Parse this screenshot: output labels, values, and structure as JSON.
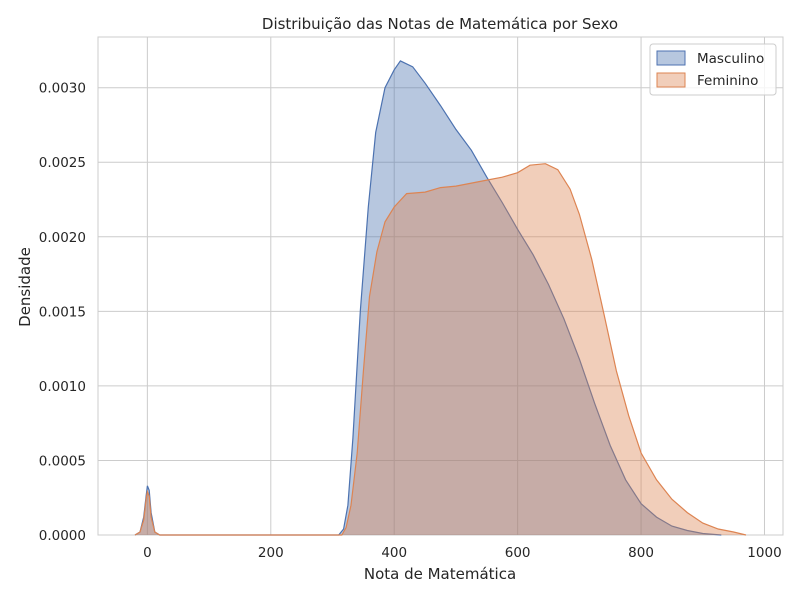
{
  "chart_data": {
    "type": "area",
    "title": "Distribuição das Notas de Matemática por Sexo",
    "xlabel": "Nota de Matemática",
    "ylabel": "Densidade",
    "xlim": [
      -80,
      1030
    ],
    "ylim": [
      0,
      0.00334
    ],
    "x_ticks": [
      0,
      200,
      400,
      600,
      800,
      1000
    ],
    "y_ticks": [
      0.0,
      0.0005,
      0.001,
      0.0015,
      0.002,
      0.0025,
      0.003
    ],
    "y_tick_labels": [
      "0.0000",
      "0.0005",
      "0.0010",
      "0.0015",
      "0.0020",
      "0.0025",
      "0.0030"
    ],
    "grid": true,
    "legend_position": "top-right",
    "series": [
      {
        "name": "Masculino",
        "color": "#4c72b0",
        "fill_alpha": 0.4,
        "points": [
          [
            -20,
            0
          ],
          [
            -12,
            2e-05
          ],
          [
            -6,
            0.00012
          ],
          [
            -2,
            0.00026
          ],
          [
            0,
            0.00033
          ],
          [
            3,
            0.0003
          ],
          [
            6,
            0.00015
          ],
          [
            12,
            2e-05
          ],
          [
            20,
            0
          ],
          [
            310,
            0
          ],
          [
            318,
            4e-05
          ],
          [
            325,
            0.0002
          ],
          [
            333,
            0.00065
          ],
          [
            345,
            0.0015
          ],
          [
            358,
            0.0022
          ],
          [
            370,
            0.0027
          ],
          [
            385,
            0.003
          ],
          [
            400,
            0.00312
          ],
          [
            410,
            0.00318
          ],
          [
            430,
            0.00314
          ],
          [
            450,
            0.00303
          ],
          [
            475,
            0.00288
          ],
          [
            500,
            0.00272
          ],
          [
            525,
            0.00258
          ],
          [
            550,
            0.0024
          ],
          [
            575,
            0.00223
          ],
          [
            600,
            0.00205
          ],
          [
            625,
            0.00188
          ],
          [
            650,
            0.00168
          ],
          [
            675,
            0.00145
          ],
          [
            700,
            0.00118
          ],
          [
            725,
            0.00088
          ],
          [
            750,
            0.0006
          ],
          [
            775,
            0.00037
          ],
          [
            800,
            0.00021
          ],
          [
            825,
            0.00012
          ],
          [
            850,
            6e-05
          ],
          [
            875,
            3e-05
          ],
          [
            900,
            1e-05
          ],
          [
            930,
            0
          ]
        ]
      },
      {
        "name": "Feminino",
        "color": "#dd8452",
        "fill_alpha": 0.4,
        "points": [
          [
            -20,
            0
          ],
          [
            -12,
            2e-05
          ],
          [
            -6,
            0.0001
          ],
          [
            -2,
            0.00024
          ],
          [
            0,
            0.00029
          ],
          [
            3,
            0.00026
          ],
          [
            6,
            0.00012
          ],
          [
            12,
            2e-05
          ],
          [
            20,
            0
          ],
          [
            315,
            0
          ],
          [
            322,
            5e-05
          ],
          [
            330,
            0.0002
          ],
          [
            340,
            0.00055
          ],
          [
            350,
            0.0011
          ],
          [
            360,
            0.0016
          ],
          [
            372,
            0.0019
          ],
          [
            385,
            0.0021
          ],
          [
            400,
            0.0022
          ],
          [
            420,
            0.00229
          ],
          [
            450,
            0.0023
          ],
          [
            475,
            0.00233
          ],
          [
            500,
            0.00234
          ],
          [
            525,
            0.00236
          ],
          [
            550,
            0.00238
          ],
          [
            575,
            0.0024
          ],
          [
            600,
            0.00243
          ],
          [
            620,
            0.00248
          ],
          [
            645,
            0.00249
          ],
          [
            665,
            0.00245
          ],
          [
            685,
            0.00232
          ],
          [
            700,
            0.00215
          ],
          [
            720,
            0.00185
          ],
          [
            740,
            0.00148
          ],
          [
            760,
            0.0011
          ],
          [
            780,
            0.0008
          ],
          [
            800,
            0.00055
          ],
          [
            825,
            0.00037
          ],
          [
            850,
            0.00024
          ],
          [
            875,
            0.00015
          ],
          [
            900,
            8e-05
          ],
          [
            925,
            4e-05
          ],
          [
            950,
            2e-05
          ],
          [
            970,
            0
          ]
        ]
      }
    ]
  }
}
